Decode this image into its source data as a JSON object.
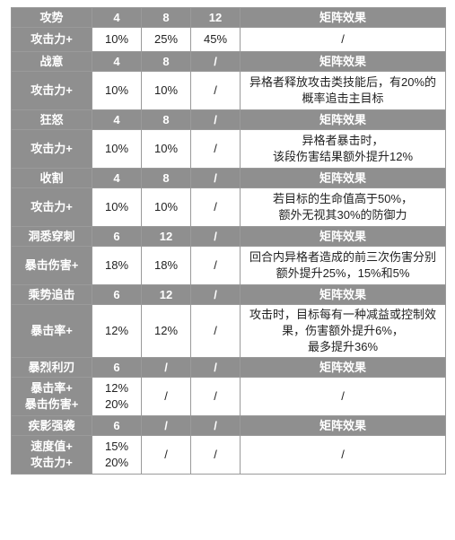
{
  "sets": [
    {
      "name": "攻势",
      "h1": "4",
      "h2": "8",
      "h3": "12",
      "effect_header": "矩阵效果",
      "stat": "攻击力+",
      "v1": "10%",
      "v2": "25%",
      "v3": "45%",
      "effect": "/"
    },
    {
      "name": "战意",
      "h1": "4",
      "h2": "8",
      "h3": "/",
      "effect_header": "矩阵效果",
      "stat": "攻击力+",
      "v1": "10%",
      "v2": "10%",
      "v3": "/",
      "effect": "异格者释放攻击类技能后，有20%的\n概率追击主目标"
    },
    {
      "name": "狂怒",
      "h1": "4",
      "h2": "8",
      "h3": "/",
      "effect_header": "矩阵效果",
      "stat": "攻击力+",
      "v1": "10%",
      "v2": "10%",
      "v3": "/",
      "effect": "异格者暴击时，\n该段伤害结果额外提升12%"
    },
    {
      "name": "收割",
      "h1": "4",
      "h2": "8",
      "h3": "/",
      "effect_header": "矩阵效果",
      "stat": "攻击力+",
      "v1": "10%",
      "v2": "10%",
      "v3": "/",
      "effect": "若目标的生命值高于50%，\n额外无视其30%的防御力"
    },
    {
      "name": "洞悉穿刺",
      "h1": "6",
      "h2": "12",
      "h3": "/",
      "effect_header": "矩阵效果",
      "stat": "暴击伤害+",
      "v1": "18%",
      "v2": "18%",
      "v3": "/",
      "effect": "回合内异格者造成的前三次伤害分别\n额外提升25%，15%和5%"
    },
    {
      "name": "乘势追击",
      "h1": "6",
      "h2": "12",
      "h3": "/",
      "effect_header": "矩阵效果",
      "stat": "暴击率+",
      "v1": "12%",
      "v2": "12%",
      "v3": "/",
      "effect": "攻击时，目标每有一种减益或控制效\n果，伤害额外提升6%，\n最多提升36%"
    },
    {
      "name": "暴烈利刃",
      "h1": "6",
      "h2": "/",
      "h3": "/",
      "effect_header": "矩阵效果",
      "stat": "暴击率+\n暴击伤害+",
      "v1": "12%\n20%",
      "v2": "/",
      "v3": "/",
      "effect": "/"
    },
    {
      "name": "疾影强袭",
      "h1": "6",
      "h2": "/",
      "h3": "/",
      "effect_header": "矩阵效果",
      "stat": "速度值+\n攻击力+",
      "v1": "15%\n20%",
      "v2": "/",
      "v3": "/",
      "effect": "/"
    }
  ]
}
